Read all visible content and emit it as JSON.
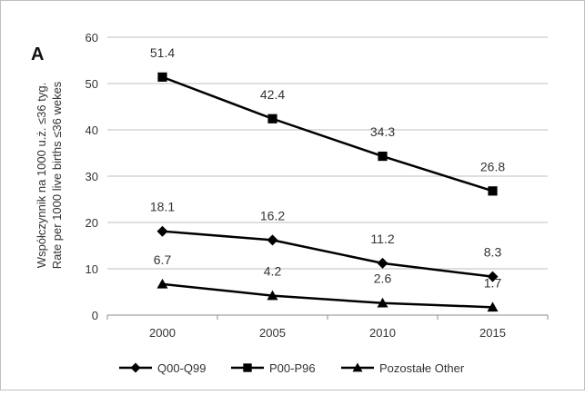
{
  "chart_data": {
    "type": "line",
    "panel_label": "A",
    "x": [
      "2000",
      "2005",
      "2010",
      "2015"
    ],
    "ylabel_lines": [
      "Współczynnik na 1000 u.ż. ≤36 tyg.",
      "Rate per 1000 live births ≤36 wekes"
    ],
    "ylim": [
      0,
      60
    ],
    "yticks": [
      0,
      10,
      20,
      30,
      40,
      50,
      60
    ],
    "grid": "horizontal",
    "legend_position": "bottom",
    "series": [
      {
        "name": "Q00-Q99",
        "marker": "diamond",
        "color": "#000000",
        "values": [
          18.1,
          16.2,
          11.2,
          8.3
        ],
        "labels": [
          "18.1",
          "16.2",
          "11.2",
          "8.3"
        ]
      },
      {
        "name": "P00-P96",
        "marker": "square",
        "color": "#000000",
        "values": [
          51.4,
          42.4,
          34.3,
          26.8
        ],
        "labels": [
          "51.4",
          "42.4",
          "34.3",
          "26.8"
        ]
      },
      {
        "name": "Pozostałe Other",
        "marker": "triangle",
        "color": "#000000",
        "values": [
          6.7,
          4.2,
          2.6,
          1.7
        ],
        "labels": [
          "6.7",
          "4.2",
          "2.6",
          "1.7"
        ]
      }
    ]
  }
}
